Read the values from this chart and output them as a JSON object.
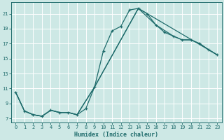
{
  "xlabel": "Humidex (Indice chaleur)",
  "bg_color": "#cde8e5",
  "line_color": "#1e6b6b",
  "grid_color": "#ffffff",
  "xlim": [
    -0.5,
    23.5
  ],
  "ylim": [
    6.5,
    22.5
  ],
  "xticks": [
    0,
    1,
    2,
    3,
    4,
    5,
    6,
    7,
    8,
    9,
    10,
    11,
    12,
    13,
    14,
    15,
    16,
    17,
    18,
    19,
    20,
    21,
    22,
    23
  ],
  "yticks": [
    7,
    9,
    11,
    13,
    15,
    17,
    19,
    21
  ],
  "line1_x": [
    0,
    1,
    2,
    3,
    4,
    5,
    6,
    7,
    8,
    9,
    10,
    11,
    12,
    13,
    14,
    15,
    16,
    17,
    18,
    19,
    20,
    21,
    22,
    23
  ],
  "line1_y": [
    10.5,
    8.0,
    7.5,
    7.3,
    8.1,
    7.8,
    7.8,
    7.5,
    8.3,
    11.2,
    16.0,
    18.7,
    19.3,
    21.5,
    21.7,
    21.0,
    19.5,
    18.5,
    18.0,
    17.5,
    17.5,
    17.0,
    16.2,
    15.5
  ],
  "line2_x": [
    0,
    1,
    2,
    3,
    4,
    5,
    6,
    7,
    9,
    14,
    16,
    18,
    19,
    20,
    21,
    22,
    23
  ],
  "line2_y": [
    10.5,
    8.0,
    7.5,
    7.3,
    8.1,
    7.8,
    7.8,
    7.5,
    11.2,
    21.7,
    19.5,
    18.0,
    17.5,
    17.5,
    17.0,
    16.2,
    15.5
  ],
  "line3_x": [
    0,
    1,
    2,
    3,
    4,
    5,
    6,
    7,
    9,
    14,
    23
  ],
  "line3_y": [
    10.5,
    8.0,
    7.5,
    7.3,
    8.1,
    7.8,
    7.8,
    7.5,
    11.2,
    21.7,
    15.5
  ]
}
